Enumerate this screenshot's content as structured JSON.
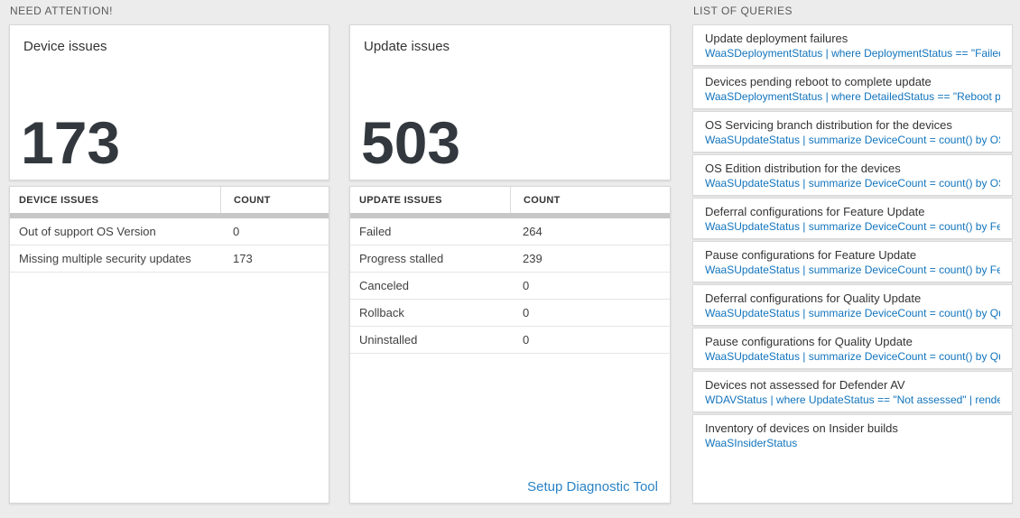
{
  "need_attention": {
    "label": "NEED ATTENTION!",
    "device_card": {
      "title": "Device issues",
      "value": "173"
    },
    "device_table": {
      "headers": [
        "DEVICE ISSUES",
        "COUNT"
      ],
      "rows": [
        {
          "label": "Out of support OS Version",
          "count": "0"
        },
        {
          "label": "Missing multiple security updates",
          "count": "173"
        }
      ]
    },
    "update_card": {
      "title": "Update issues",
      "value": "503"
    },
    "update_table": {
      "headers": [
        "UPDATE ISSUES",
        "COUNT"
      ],
      "rows": [
        {
          "label": "Failed",
          "count": "264"
        },
        {
          "label": "Progress stalled",
          "count": "239"
        },
        {
          "label": "Canceled",
          "count": "0"
        },
        {
          "label": "Rollback",
          "count": "0"
        },
        {
          "label": "Uninstalled",
          "count": "0"
        }
      ],
      "footer_link": "Setup Diagnostic Tool"
    }
  },
  "queries": {
    "label": "LIST OF QUERIES",
    "items": [
      {
        "title": "Update deployment failures",
        "query": "WaaSDeploymentStatus | where DeploymentStatus == \"Failed\" |..."
      },
      {
        "title": "Devices pending reboot to complete update",
        "query": "WaaSDeploymentStatus | where DetailedStatus == \"Reboot pend..."
      },
      {
        "title": "OS Servicing branch distribution for the devices",
        "query": "WaaSUpdateStatus | summarize DeviceCount = count() by OSSer..."
      },
      {
        "title": "OS Edition distribution for the devices",
        "query": "WaaSUpdateStatus | summarize DeviceCount = count() by OSEdit..."
      },
      {
        "title": "Deferral configurations for Feature Update",
        "query": "WaaSUpdateStatus | summarize DeviceCount = count() by Featur..."
      },
      {
        "title": "Pause configurations for Feature Update",
        "query": "WaaSUpdateStatus | summarize DeviceCount = count() by Featur..."
      },
      {
        "title": "Deferral configurations for Quality Update",
        "query": "WaaSUpdateStatus | summarize DeviceCount = count() by Qualit..."
      },
      {
        "title": "Pause configurations for Quality Update",
        "query": "WaaSUpdateStatus | summarize DeviceCount = count() by Qualit..."
      },
      {
        "title": "Devices not assessed for Defender AV",
        "query": "WDAVStatus | where UpdateStatus == \"Not assessed\" | render ta..."
      },
      {
        "title": "Inventory of devices on Insider builds",
        "query": "WaaSInsiderStatus"
      }
    ]
  },
  "colors": {
    "query_link_blue": "#1174bd",
    "footer_link_blue": "#2b83c6",
    "big_number_color": "#32383e",
    "scroll_shadow_gray": "#c7c7c7",
    "page_background": "#ececec"
  }
}
